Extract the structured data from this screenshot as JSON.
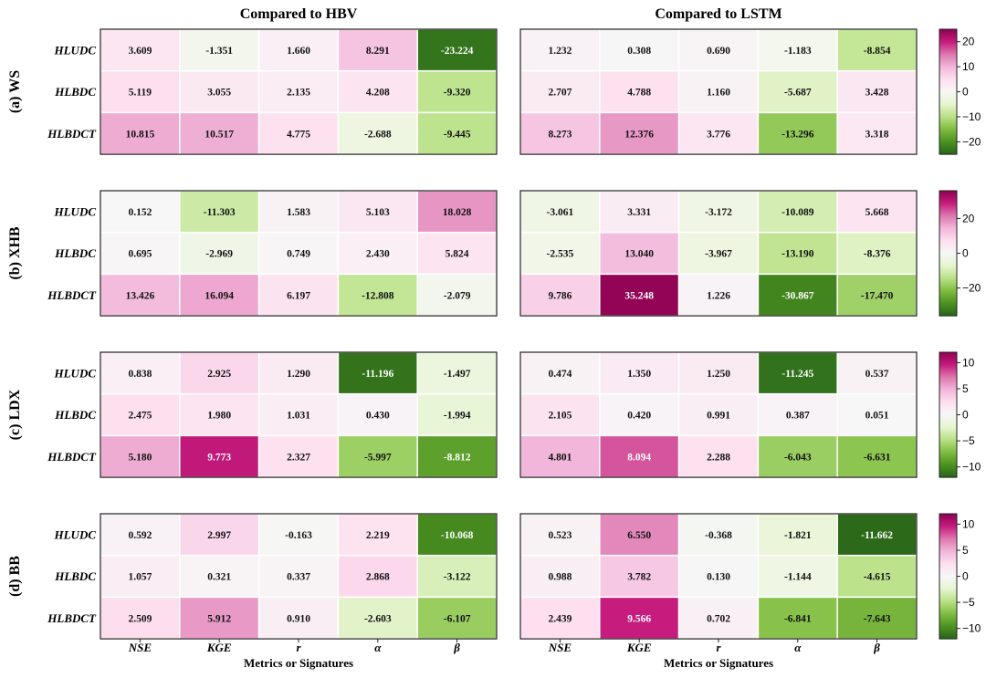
{
  "chart_data": {
    "type": "heatmap",
    "column_titles": [
      "Compared to HBV",
      "Compared to LSTM"
    ],
    "x_categories": [
      "NSE",
      "KGE",
      "r",
      "α",
      "β"
    ],
    "y_categories": [
      "HLUDC",
      "HLBDC",
      "HLBDCT"
    ],
    "x_axis_label": "Metrics or Signatures",
    "colormap": {
      "name": "PiYG reversed",
      "colors": [
        "#276419",
        "#4d9221",
        "#7fbc41",
        "#b8e186",
        "#e6f5d0",
        "#f7f7f7",
        "#fde0ef",
        "#f1b6da",
        "#de77ae",
        "#c51b7d",
        "#8e0152"
      ]
    },
    "panels": [
      {
        "label": "(a) WS",
        "color_range": [
          -25,
          25
        ],
        "colorbar_ticks": [
          20,
          10,
          0,
          -10,
          -20
        ],
        "hbv": [
          [
            3.609,
            -1.351,
            1.66,
            8.291,
            -23.224
          ],
          [
            5.119,
            3.055,
            2.135,
            4.208,
            -9.32
          ],
          [
            10.815,
            10.517,
            4.775,
            -2.688,
            -9.445
          ]
        ],
        "lstm": [
          [
            1.232,
            0.308,
            0.69,
            -1.183,
            -8.854
          ],
          [
            2.707,
            4.788,
            1.16,
            -5.687,
            3.428
          ],
          [
            8.273,
            12.376,
            3.776,
            -13.296,
            3.318
          ]
        ]
      },
      {
        "label": "(b) XHB",
        "color_range": [
          -36,
          36
        ],
        "colorbar_ticks": [
          20,
          0,
          -20
        ],
        "hbv": [
          [
            0.152,
            -11.303,
            1.583,
            5.103,
            18.028
          ],
          [
            0.695,
            -2.969,
            0.749,
            2.43,
            5.824
          ],
          [
            13.426,
            16.094,
            6.197,
            -12.808,
            -2.079
          ]
        ],
        "lstm": [
          [
            -3.061,
            3.331,
            -3.172,
            -10.089,
            5.668
          ],
          [
            -2.535,
            13.04,
            -3.967,
            -13.19,
            -8.376
          ],
          [
            9.786,
            35.248,
            1.226,
            -30.867,
            -17.47
          ]
        ]
      },
      {
        "label": "(c) LDX",
        "color_range": [
          -12,
          12
        ],
        "colorbar_ticks": [
          10,
          5,
          0,
          -5,
          -10
        ],
        "hbv": [
          [
            0.838,
            2.925,
            1.29,
            -11.196,
            -1.497
          ],
          [
            2.475,
            1.98,
            1.031,
            0.43,
            -1.994
          ],
          [
            5.18,
            9.773,
            2.327,
            -5.997,
            -8.812
          ]
        ],
        "lstm": [
          [
            0.474,
            1.35,
            1.25,
            -11.245,
            0.537
          ],
          [
            2.105,
            0.42,
            0.991,
            0.387,
            0.051
          ],
          [
            4.801,
            8.094,
            2.288,
            -6.043,
            -6.631
          ]
        ]
      },
      {
        "label": "(d) BB",
        "color_range": [
          -12,
          12
        ],
        "colorbar_ticks": [
          10,
          5,
          0,
          -5,
          -10
        ],
        "hbv": [
          [
            0.592,
            2.997,
            -0.163,
            2.219,
            -10.068
          ],
          [
            1.057,
            0.321,
            0.337,
            2.868,
            -3.122
          ],
          [
            2.509,
            5.912,
            0.91,
            -2.603,
            -6.107
          ]
        ],
        "lstm": [
          [
            0.523,
            6.55,
            -0.368,
            -1.821,
            -11.662
          ],
          [
            0.988,
            3.782,
            0.13,
            -1.144,
            -4.615
          ],
          [
            2.439,
            9.566,
            0.702,
            -6.841,
            -7.643
          ]
        ]
      }
    ]
  }
}
